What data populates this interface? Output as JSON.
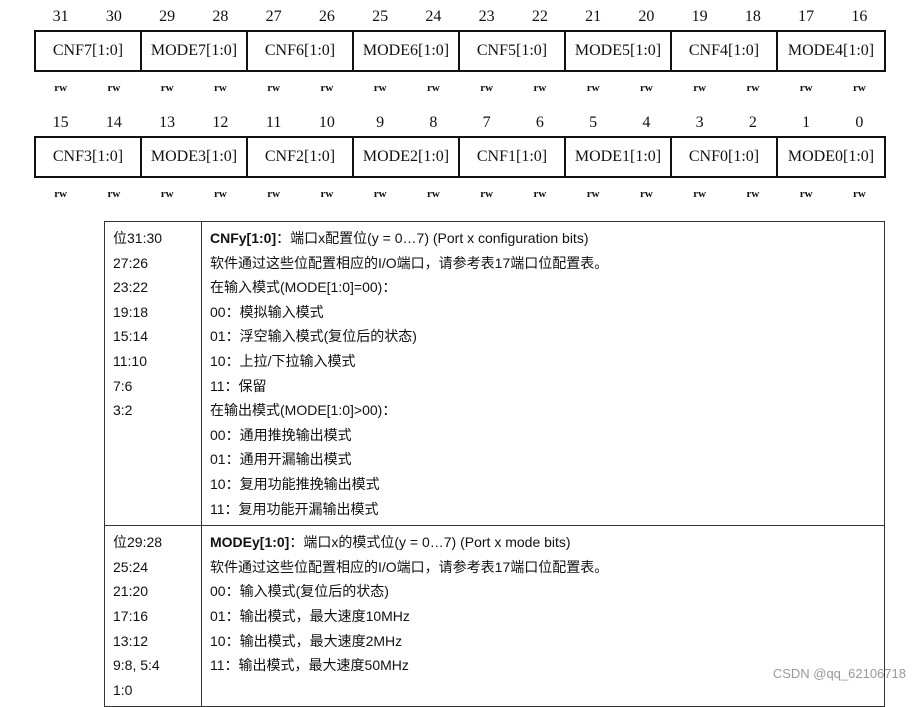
{
  "register": {
    "high": {
      "bits": [
        "31",
        "30",
        "29",
        "28",
        "27",
        "26",
        "25",
        "24",
        "23",
        "22",
        "21",
        "20",
        "19",
        "18",
        "17",
        "16"
      ],
      "fields": [
        "CNF7[1:0]",
        "MODE7[1:0]",
        "CNF6[1:0]",
        "MODE6[1:0]",
        "CNF5[1:0]",
        "MODE5[1:0]",
        "CNF4[1:0]",
        "MODE4[1:0]"
      ]
    },
    "low": {
      "bits": [
        "15",
        "14",
        "13",
        "12",
        "11",
        "10",
        "9",
        "8",
        "7",
        "6",
        "5",
        "4",
        "3",
        "2",
        "1",
        "0"
      ],
      "fields": [
        "CNF3[1:0]",
        "MODE3[1:0]",
        "CNF2[1:0]",
        "MODE2[1:0]",
        "CNF1[1:0]",
        "MODE1[1:0]",
        "CNF0[1:0]",
        "MODE0[1:0]"
      ]
    },
    "access": "rw"
  },
  "table": [
    {
      "bits": [
        "位31:30",
        "27:26",
        "23:22",
        "19:18",
        "15:14",
        "11:10",
        "7:6",
        "3:2"
      ],
      "title": "CNFy[1:0]",
      "lines": [
        "：端口x配置位(y = 0…7) (Port x configuration bits)",
        "软件通过这些位配置相应的I/O端口，请参考表17端口位配置表。",
        "在输入模式(MODE[1:0]=00)：",
        "00：模拟输入模式",
        "01：浮空输入模式(复位后的状态)",
        "10：上拉/下拉输入模式",
        "11：保留",
        "在输出模式(MODE[1:0]>00)：",
        "00：通用推挽输出模式",
        "01：通用开漏输出模式",
        "10：复用功能推挽输出模式",
        "11：复用功能开漏输出模式"
      ]
    },
    {
      "bits": [
        "位29:28",
        "25:24",
        "21:20",
        "17:16",
        "13:12",
        "9:8, 5:4",
        "1:0"
      ],
      "title": "MODEy[1:0]",
      "lines": [
        "：端口x的模式位(y = 0…7) (Port x mode bits)",
        "软件通过这些位配置相应的I/O端口，请参考表17端口位配置表。",
        "00：输入模式(复位后的状态)",
        "01：输出模式，最大速度10MHz",
        "10：输出模式，最大速度2MHz",
        "11：输出模式，最大速度50MHz"
      ]
    }
  ],
  "watermark": "CSDN @qq_62106718"
}
